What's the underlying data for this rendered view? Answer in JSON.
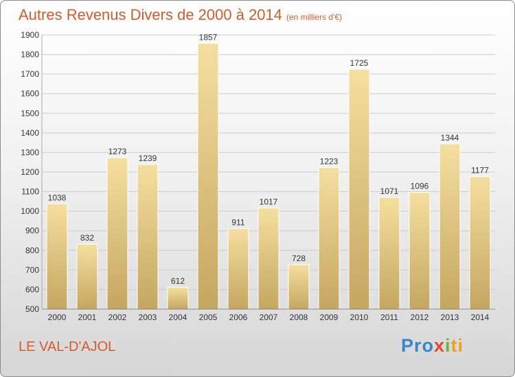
{
  "chart_data": {
    "type": "bar",
    "title": "Autres Revenus Divers de 2000 à 2014",
    "subtitle": "(en milliers d'€)",
    "categories": [
      "2000",
      "2001",
      "2002",
      "2003",
      "2004",
      "2005",
      "2006",
      "2007",
      "2008",
      "2009",
      "2010",
      "2011",
      "2012",
      "2013",
      "2014"
    ],
    "values": [
      1038,
      832,
      1273,
      1239,
      612,
      1857,
      911,
      1017,
      728,
      1223,
      1725,
      1071,
      1096,
      1344,
      1177
    ],
    "ylim": [
      500,
      1900
    ],
    "yticks": [
      500,
      600,
      700,
      800,
      900,
      1000,
      1100,
      1200,
      1300,
      1400,
      1500,
      1600,
      1700,
      1800,
      1900
    ],
    "grid": true,
    "xlabel": "",
    "ylabel": ""
  },
  "location": "LE VAL-D'AJOL",
  "logo": {
    "part1": "Pro",
    "part2": "x",
    "part3": "i",
    "part4": "ti"
  },
  "colors": {
    "bar_top": "#f5dfa0",
    "bar_bottom": "#c4a660",
    "title": "#d45a2a"
  }
}
